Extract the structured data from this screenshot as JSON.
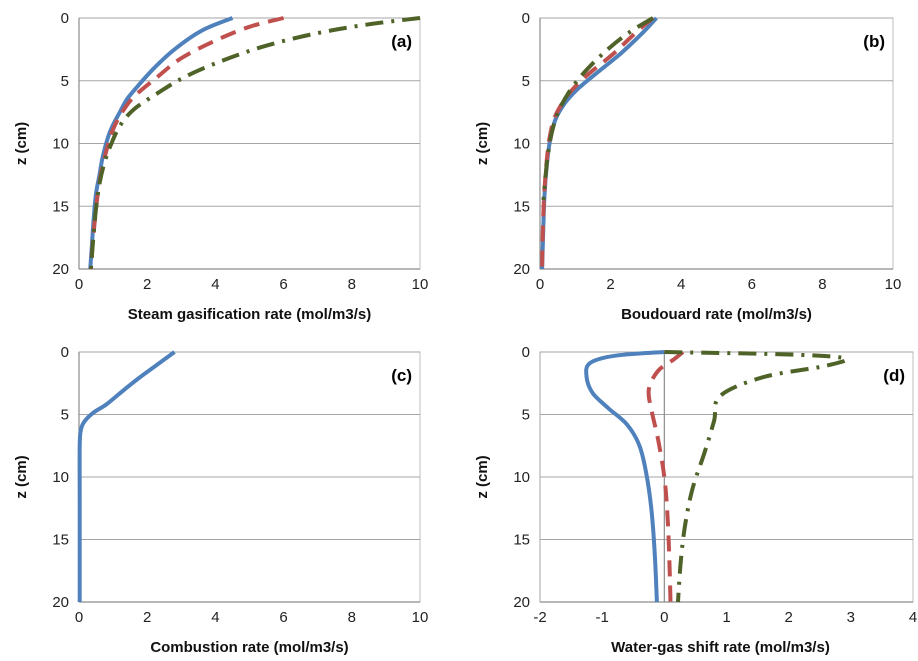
{
  "colors": {
    "blue": "#4f81bd",
    "red": "#c0504d",
    "green": "#4f6228"
  },
  "chart_data": [
    {
      "id": "a",
      "type": "line",
      "panel_label": "(a)",
      "xlabel": "Steam gasification rate (mol/m3/s)",
      "ylabel": "z (cm)",
      "xlim": [
        0,
        10
      ],
      "ylim": [
        0,
        20
      ],
      "y_inverted": true,
      "xticks": [
        0,
        2,
        4,
        6,
        8,
        10
      ],
      "yticks": [
        0,
        5,
        10,
        15,
        20
      ],
      "series": [
        {
          "style": "solid",
          "color": "blue",
          "x": [
            4.5,
            3.6,
            2.8,
            2.2,
            1.7,
            1.4,
            1.2,
            1.0,
            0.85,
            0.7,
            0.6,
            0.5,
            0.43,
            0.38,
            0.33
          ],
          "y": [
            0,
            1,
            2.5,
            4,
            5.5,
            6.5,
            7.5,
            8.5,
            9.5,
            11,
            12.5,
            14,
            16,
            18,
            20
          ]
        },
        {
          "style": "dashed",
          "color": "red",
          "x": [
            6.0,
            5.0,
            4.0,
            3.0,
            2.3,
            1.6,
            1.2,
            0.95,
            0.8,
            0.65,
            0.55,
            0.47,
            0.4,
            0.35
          ],
          "y": [
            0,
            0.7,
            1.8,
            3.2,
            4.7,
            6.3,
            7.8,
            9.2,
            10.6,
            12.3,
            14,
            16,
            18,
            20
          ]
        },
        {
          "style": "dashdot",
          "color": "green",
          "x": [
            10.0,
            8.5,
            7.0,
            5.5,
            4.2,
            3.1,
            2.3,
            1.6,
            1.2,
            0.95,
            0.75,
            0.6,
            0.5,
            0.42,
            0.35
          ],
          "y": [
            0,
            0.5,
            1.2,
            2.2,
            3.4,
            4.7,
            6.0,
            7.3,
            8.6,
            10,
            11.5,
            13.2,
            15.2,
            17.5,
            20
          ]
        }
      ]
    },
    {
      "id": "b",
      "type": "line",
      "panel_label": "(b)",
      "xlabel": "Boudouard rate (mol/m3/s)",
      "ylabel": "z (cm)",
      "xlim": [
        0,
        10
      ],
      "ylim": [
        0,
        20
      ],
      "y_inverted": true,
      "xticks": [
        0,
        2,
        4,
        6,
        8,
        10
      ],
      "yticks": [
        0,
        5,
        10,
        15,
        20
      ],
      "series": [
        {
          "style": "solid",
          "color": "blue",
          "x": [
            3.3,
            2.9,
            2.3,
            1.6,
            1.05,
            0.7,
            0.45,
            0.3,
            0.2,
            0.13,
            0.09,
            0.06
          ],
          "y": [
            0,
            1.2,
            2.8,
            4.4,
            5.7,
            6.8,
            8.0,
            9.5,
            11.5,
            14,
            17,
            20
          ]
        },
        {
          "style": "dashed",
          "color": "red",
          "x": [
            3.2,
            2.7,
            2.1,
            1.4,
            0.95,
            0.65,
            0.42,
            0.28,
            0.19,
            0.12,
            0.08,
            0.06
          ],
          "y": [
            0,
            1.2,
            2.8,
            4.4,
            5.6,
            6.7,
            7.9,
            9.4,
            11.4,
            14,
            17,
            20
          ]
        },
        {
          "style": "dashdot",
          "color": "green",
          "x": [
            3.2,
            2.5,
            1.8,
            1.2,
            0.8,
            0.5,
            0.33,
            0.22,
            0.15,
            0.1
          ],
          "y": [
            0,
            1.2,
            2.8,
            4.5,
            6.0,
            7.6,
            9.2,
            11.0,
            12.8,
            14.5
          ]
        }
      ]
    },
    {
      "id": "c",
      "type": "line",
      "panel_label": "(c)",
      "xlabel": "Combustion rate (mol/m3/s)",
      "ylabel": "z (cm)",
      "xlim": [
        0,
        10
      ],
      "ylim": [
        0,
        20
      ],
      "y_inverted": true,
      "xticks": [
        0,
        2,
        4,
        6,
        8,
        10
      ],
      "yticks": [
        0,
        5,
        10,
        15,
        20
      ],
      "series": [
        {
          "style": "solid",
          "color": "blue",
          "x": [
            2.8,
            2.3,
            1.7,
            1.2,
            0.8,
            0.4,
            0.15,
            0.05,
            0.02,
            0.02,
            0.02
          ],
          "y": [
            0,
            1.0,
            2.2,
            3.3,
            4.2,
            4.9,
            5.6,
            6.3,
            7.5,
            12,
            20
          ]
        }
      ]
    },
    {
      "id": "d",
      "type": "line",
      "panel_label": "(d)",
      "xlabel": "Water-gas shift rate (mol/m3/s)",
      "ylabel": "z (cm)",
      "xlim": [
        -2,
        4
      ],
      "ylim": [
        0,
        20
      ],
      "y_inverted": true,
      "xticks": [
        -2,
        -1,
        0,
        1,
        2,
        3,
        4
      ],
      "yticks": [
        0,
        5,
        10,
        15,
        20
      ],
      "series": [
        {
          "style": "solid",
          "color": "blue",
          "x": [
            0.0,
            -0.8,
            -1.2,
            -1.25,
            -1.15,
            -0.9,
            -0.6,
            -0.4,
            -0.28,
            -0.2,
            -0.15,
            -0.12
          ],
          "y": [
            0,
            0.3,
            0.9,
            2.0,
            3.3,
            4.5,
            5.8,
            7.5,
            10,
            13,
            16.5,
            20
          ]
        },
        {
          "style": "dashed",
          "color": "red",
          "x": [
            0.3,
            0.15,
            -0.1,
            -0.25,
            -0.2,
            -0.1,
            0.0,
            0.05,
            0.08,
            0.1
          ],
          "y": [
            0,
            0.6,
            1.5,
            3.0,
            4.8,
            7.0,
            10,
            13,
            16.5,
            20
          ]
        },
        {
          "style": "dashdot",
          "color": "green",
          "x": [
            0.0,
            2.0,
            2.9,
            2.6,
            1.6,
            0.9,
            0.8,
            0.65,
            0.45,
            0.33,
            0.26,
            0.22
          ],
          "y": [
            0,
            0.2,
            0.5,
            1.1,
            2.0,
            3.5,
            5.5,
            8.0,
            11,
            14,
            17,
            20
          ]
        }
      ]
    }
  ]
}
